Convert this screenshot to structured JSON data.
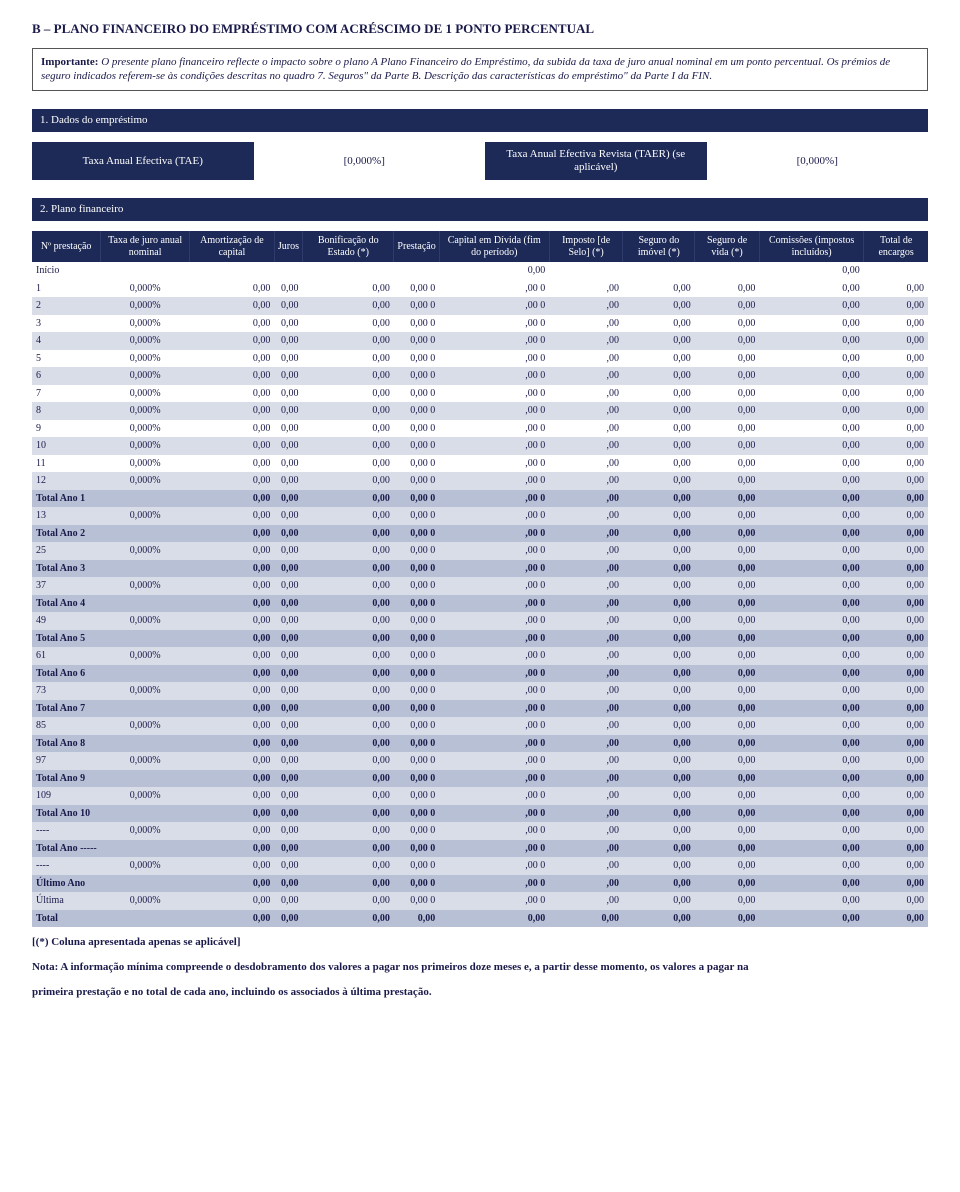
{
  "title": "B – PLANO FINANCEIRO DO EMPRÉSTIMO COM ACRÉSCIMO DE 1 PONTO PERCENTUAL",
  "important": {
    "lead": "Importante:",
    "body": " O presente plano financeiro reflecte o impacto sobre o plano A Plano Financeiro do Empréstimo, da subida da taxa de juro anual nominal em um ponto percentual. Os prémios de seguro indicados referem-se às condições descritas no quadro 7. Seguros\" da Parte B. Descrição das características do empréstimo\" da Parte I da FIN."
  },
  "section1": "1. Dados do empréstimo",
  "rates": {
    "tae_label": "Taxa Anual Efectiva (TAE)",
    "tae_value": "[0,000%]",
    "taer_label": "Taxa Anual Efectiva Revista (TAER) (se aplicável)",
    "taer_value": "[0,000%]"
  },
  "section2": "2. Plano financeiro",
  "columns": [
    "Nº prestação",
    "Taxa de juro anual nominal",
    "Amortização de capital",
    "Juros",
    "Bonificação do Estado (*)",
    "Prestação",
    "Capital em Dívida (fim do período)",
    "Imposto [de Selo] (*)",
    "Seguro do imóvel (*)",
    "Seguro de vida (*)",
    "Comissões (impostos incluídos)",
    "Total de encargos"
  ],
  "zero": "0,00",
  "zero2": ",00",
  "zero0": "0",
  "zeropct": "0,000%",
  "rows": [
    {
      "label": "Início",
      "type": "inicio",
      "taxa": "",
      "cells": [
        "",
        "",
        "",
        "",
        "0,00",
        "",
        "",
        "",
        "0,00",
        ""
      ]
    },
    {
      "label": "1",
      "type": "plain",
      "taxa": "0,000%"
    },
    {
      "label": "2",
      "type": "band",
      "taxa": "0,000%"
    },
    {
      "label": "3",
      "type": "plain",
      "taxa": "0,000%"
    },
    {
      "label": "4",
      "type": "band",
      "taxa": "0,000%"
    },
    {
      "label": "5",
      "type": "plain",
      "taxa": "0,000%"
    },
    {
      "label": "6",
      "type": "band",
      "taxa": "0,000%"
    },
    {
      "label": "7",
      "type": "plain",
      "taxa": "0,000%"
    },
    {
      "label": "8",
      "type": "band",
      "taxa": "0,000%"
    },
    {
      "label": "9",
      "type": "plain",
      "taxa": "0,000%"
    },
    {
      "label": "10",
      "type": "band",
      "taxa": "0,000%"
    },
    {
      "label": "11",
      "type": "plain",
      "taxa": "0,000%"
    },
    {
      "label": "12",
      "type": "band",
      "taxa": "0,000%"
    },
    {
      "label": "Total Ano 1",
      "type": "total",
      "taxa": ""
    },
    {
      "label": "13",
      "type": "band",
      "taxa": "0,000%"
    },
    {
      "label": "Total Ano 2",
      "type": "total",
      "taxa": ""
    },
    {
      "label": "25",
      "type": "band",
      "taxa": "0,000%"
    },
    {
      "label": "Total Ano 3",
      "type": "total",
      "taxa": ""
    },
    {
      "label": "37",
      "type": "band",
      "taxa": "0,000%"
    },
    {
      "label": "Total Ano 4",
      "type": "total",
      "taxa": ""
    },
    {
      "label": "49",
      "type": "band",
      "taxa": "0,000%"
    },
    {
      "label": "Total Ano 5",
      "type": "total",
      "taxa": ""
    },
    {
      "label": "61",
      "type": "band",
      "taxa": "0,000%"
    },
    {
      "label": "Total Ano 6",
      "type": "total",
      "taxa": ""
    },
    {
      "label": "73",
      "type": "band",
      "taxa": "0,000%"
    },
    {
      "label": "Total Ano 7",
      "type": "total",
      "taxa": ""
    },
    {
      "label": "85",
      "type": "band",
      "taxa": "0,000%"
    },
    {
      "label": "Total Ano 8",
      "type": "total",
      "taxa": ""
    },
    {
      "label": "97",
      "type": "band",
      "taxa": "0,000%"
    },
    {
      "label": "Total Ano 9",
      "type": "total",
      "taxa": ""
    },
    {
      "label": "109",
      "type": "band",
      "taxa": "0,000%"
    },
    {
      "label": "Total Ano 10",
      "type": "total",
      "taxa": ""
    },
    {
      "label": "----",
      "type": "band",
      "taxa": "0,000%"
    },
    {
      "label": "Total Ano -----",
      "type": "total",
      "taxa": ""
    },
    {
      "label": "----",
      "type": "band",
      "taxa": "0,000%"
    },
    {
      "label": "Último Ano",
      "type": "total",
      "taxa": ""
    },
    {
      "label": "Última",
      "type": "band",
      "taxa": "0,000%"
    },
    {
      "label": "Total",
      "type": "total",
      "taxa": "",
      "final": true
    }
  ],
  "footnotes": {
    "f1": "[(*) Coluna apresentada apenas se aplicável]",
    "f2_lead": "Nota: A informação mínima compreende o desdobramento dos valores a pagar nos primeiros doze meses e, a partir desse momento, os valores a pagar na",
    "f3": "primeira prestação e no total de cada ano, incluindo os associados à última prestação."
  }
}
